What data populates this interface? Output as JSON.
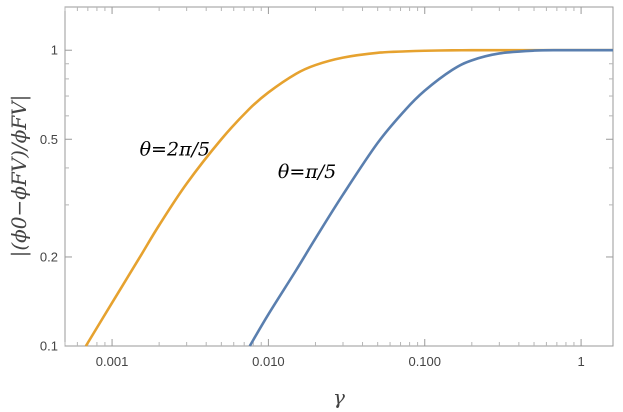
{
  "chart_data": {
    "type": "line",
    "title": "",
    "xlabel": "γ",
    "ylabel": "|(ϕ0−ϕFV)/ϕFV|",
    "xscale": "log",
    "yscale": "log",
    "xlim": [
      0.0005,
      1.6
    ],
    "ylim": [
      0.1,
      1.4
    ],
    "grid": false,
    "x_ticks": [
      {
        "value": 0.001,
        "label": "0.001"
      },
      {
        "value": 0.01,
        "label": "0.010"
      },
      {
        "value": 0.1,
        "label": "0.100"
      },
      {
        "value": 1,
        "label": "1"
      }
    ],
    "y_ticks": [
      {
        "value": 0.1,
        "label": "0.1"
      },
      {
        "value": 0.2,
        "label": "0.2"
      },
      {
        "value": 0.5,
        "label": "0.5"
      },
      {
        "value": 1,
        "label": "1"
      }
    ],
    "series": [
      {
        "color": "#E6A22F",
        "x": [
          0.00068,
          0.001,
          0.0015,
          0.002,
          0.003,
          0.005,
          0.0075,
          0.01,
          0.015,
          0.02,
          0.03,
          0.05,
          0.075,
          0.1,
          0.15,
          0.2,
          0.3,
          0.5,
          1,
          1.6
        ],
        "y": [
          0.1,
          0.14,
          0.199,
          0.256,
          0.354,
          0.5,
          0.631,
          0.72,
          0.832,
          0.891,
          0.944,
          0.98,
          0.991,
          0.996,
          0.999,
          1.0,
          1.0,
          1.0,
          1.0,
          1.0
        ]
      },
      {
        "color": "#5A7FAF",
        "x": [
          0.0076,
          0.01,
          0.015,
          0.02,
          0.03,
          0.05,
          0.075,
          0.1,
          0.15,
          0.2,
          0.3,
          0.5,
          0.75,
          1,
          1.6
        ],
        "y": [
          0.1,
          0.128,
          0.18,
          0.231,
          0.325,
          0.486,
          0.628,
          0.73,
          0.858,
          0.924,
          0.975,
          0.997,
          1.0,
          1.0,
          1.0
        ]
      }
    ],
    "annotations": [
      {
        "text": "θ=2π/5",
        "x": 0.0015,
        "y": 0.44
      },
      {
        "text": "θ=π/5",
        "x": 0.0115,
        "y": 0.37
      }
    ]
  }
}
